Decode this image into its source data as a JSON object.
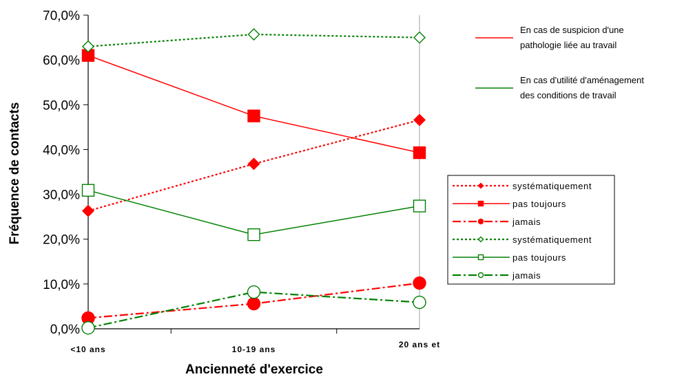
{
  "chart_data": {
    "type": "line",
    "categories": [
      "<10 ans",
      "10-19 ans",
      "20 ans et"
    ],
    "xlabel": "Ancienneté d'exercice",
    "ylabel": "Fréquence de contacts",
    "ylim": [
      0,
      70
    ],
    "yticks": [
      "0,0%",
      "10,0%",
      "20,0%",
      "30,0%",
      "40,0%",
      "50,0%",
      "60,0%",
      "70,0%"
    ],
    "grid": false,
    "legend_position": "right",
    "annotations": [
      {
        "lines": [
          "En cas de suspicion d'une",
          "pathologie liée au travail"
        ],
        "color": "#ff0000"
      },
      {
        "lines": [
          "En cas d'utilité d'aménagement",
          "des conditions de travail"
        ],
        "color": "#008000"
      }
    ],
    "series": [
      {
        "name": "systématiquement",
        "values": [
          26.3,
          36.8,
          46.6
        ],
        "color": "#ff0000",
        "dash": "dotted",
        "marker": "diamond",
        "filled": true
      },
      {
        "name": "pas toujours",
        "values": [
          61.0,
          47.5,
          39.3
        ],
        "color": "#ff0000",
        "dash": "solid",
        "marker": "square",
        "filled": true
      },
      {
        "name": "jamais",
        "values": [
          2.4,
          5.6,
          10.2
        ],
        "color": "#ff0000",
        "dash": "dashdot",
        "marker": "circle",
        "filled": true
      },
      {
        "name": "systématiquement",
        "values": [
          63.0,
          65.7,
          65.0
        ],
        "color": "#008000",
        "dash": "dotted",
        "marker": "diamond",
        "filled": false
      },
      {
        "name": "pas toujours",
        "values": [
          30.9,
          21.0,
          27.4
        ],
        "color": "#008000",
        "dash": "solid",
        "marker": "square",
        "filled": false
      },
      {
        "name": "jamais",
        "values": [
          0.2,
          8.2,
          5.9
        ],
        "color": "#008000",
        "dash": "dashdot",
        "marker": "circle",
        "filled": false
      }
    ]
  }
}
